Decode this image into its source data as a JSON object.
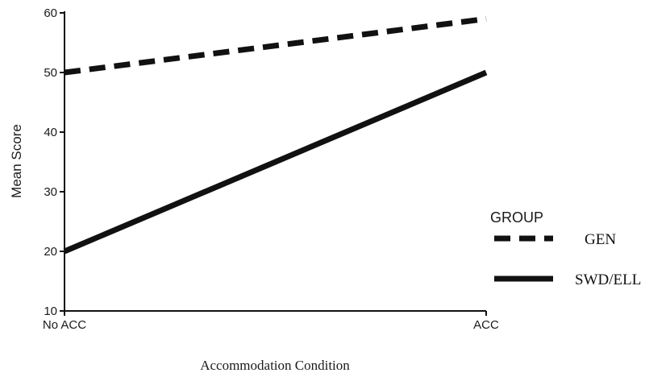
{
  "chart_data": {
    "type": "line",
    "categories": [
      "No ACC",
      "ACC"
    ],
    "series": [
      {
        "name": "GEN",
        "values": [
          50,
          59
        ],
        "style": "dashed",
        "color": "#111111"
      },
      {
        "name": "SWD/ELL",
        "values": [
          20,
          50
        ],
        "style": "solid",
        "color": "#111111"
      }
    ],
    "xlabel": "Accommodation Condition",
    "ylabel": "Mean Score",
    "ylim": [
      10,
      60
    ],
    "yticks": [
      10,
      20,
      30,
      40,
      50,
      60
    ],
    "grid": false,
    "legend": {
      "title": "GROUP",
      "placement": "right",
      "entries": [
        "GEN",
        "SWD/ELL"
      ]
    }
  }
}
